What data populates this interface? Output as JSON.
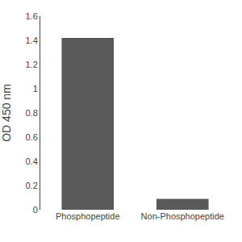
{
  "chart_data": {
    "type": "bar",
    "categories": [
      "Phosphopeptide",
      "Non-Phosphopeptide"
    ],
    "values": [
      1.42,
      0.09
    ],
    "color": "#595959",
    "ylabel": "OD 450 nm",
    "ylim": [
      0,
      1.6
    ],
    "yticks": [
      0,
      0.2,
      0.4,
      0.6,
      0.8,
      1,
      1.2,
      1.4,
      1.6
    ],
    "grid": false
  }
}
